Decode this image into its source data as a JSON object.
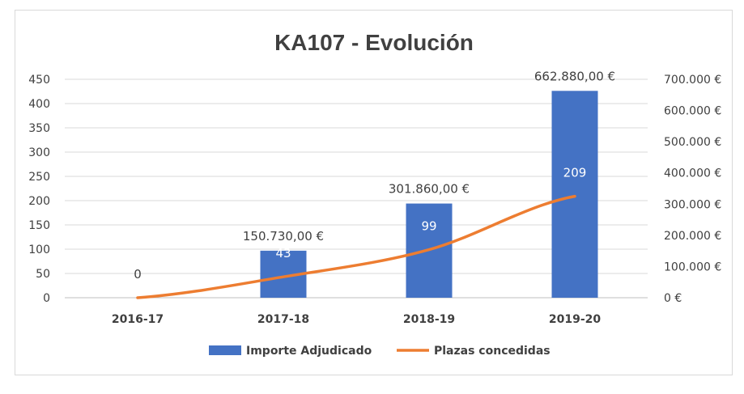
{
  "chart_data": {
    "type": "bar",
    "title": "KA107 - Evolución",
    "categories": [
      "2016-17",
      "2017-18",
      "2018-19",
      "2019-20"
    ],
    "left_axis": {
      "ylim": [
        0,
        450
      ],
      "ticks": [
        "0",
        "50",
        "100",
        "150",
        "200",
        "250",
        "300",
        "350",
        "400",
        "450"
      ]
    },
    "right_axis": {
      "ylim": [
        0,
        700000
      ],
      "ticks": [
        "0 €",
        "100.000 €",
        "200.000 €",
        "300.000 €",
        "400.000 €",
        "500.000 €",
        "600.000 €",
        "700.000 €"
      ]
    },
    "series": [
      {
        "name": "Importe Adjudicado",
        "type": "bar",
        "axis": "right",
        "color": "#4472c4",
        "values": [
          0,
          150730,
          301860,
          662880
        ],
        "labels": [
          "",
          "150.730,00 €",
          "301.860,00 €",
          "662.880,00 €"
        ]
      },
      {
        "name": "Plazas concedidas",
        "type": "line",
        "axis": "left",
        "color": "#ed7d31",
        "values": [
          0,
          43,
          99,
          209
        ],
        "labels": [
          "0",
          "43",
          "99",
          "209"
        ]
      }
    ],
    "grid": true,
    "legend": "bottom"
  }
}
